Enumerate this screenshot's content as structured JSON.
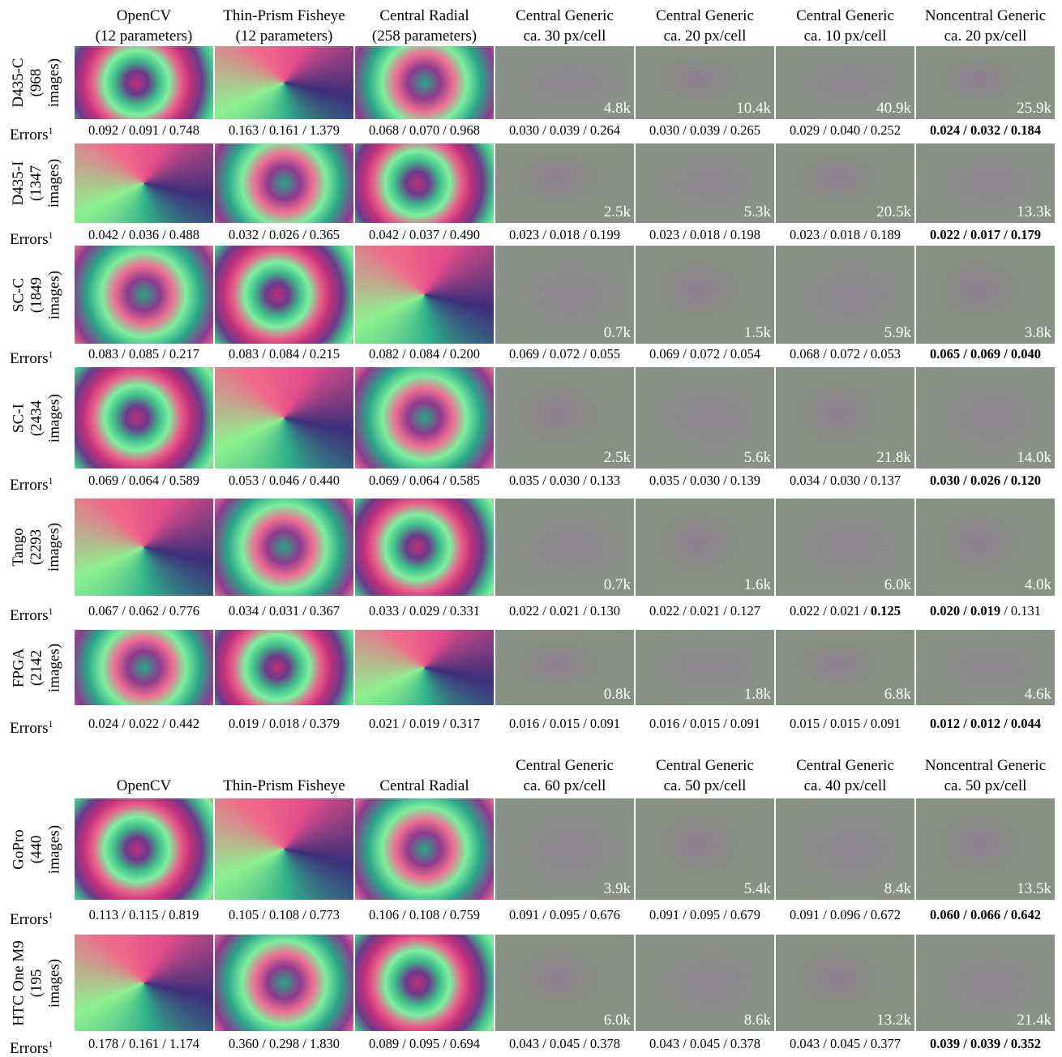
{
  "errors_label": "Errors",
  "errors_footnote": "1",
  "error_separator": " / ",
  "sections": [
    {
      "columns": [
        [
          "OpenCV",
          "(12 parameters)"
        ],
        [
          "Thin-Prism Fisheye",
          "(12 parameters)"
        ],
        [
          "Central Radial",
          "(258 parameters)"
        ],
        [
          "Central Generic",
          "ca. 30 px/cell"
        ],
        [
          "Central Generic",
          "ca. 20 px/cell"
        ],
        [
          "Central Generic",
          "ca. 10 px/cell"
        ],
        [
          "Noncentral Generic",
          "ca. 20 px/cell"
        ]
      ],
      "rows": [
        {
          "label": [
            "D435-C",
            "(968",
            "images)"
          ],
          "counts": [
            "4.8k",
            "10.4k",
            "40.9k",
            "25.9k"
          ],
          "errors": [
            [
              "0.092",
              "0.091",
              "0.748"
            ],
            [
              "0.163",
              "0.161",
              "1.379"
            ],
            [
              "0.068",
              "0.070",
              "0.968"
            ],
            [
              "0.030",
              "0.039",
              "0.264"
            ],
            [
              "0.030",
              "0.039",
              "0.265"
            ],
            [
              "0.029",
              "0.040",
              "0.252"
            ],
            [
              "0.024",
              "0.032",
              "0.184"
            ]
          ],
          "bold": [
            [
              6,
              0
            ],
            [
              6,
              1
            ],
            [
              6,
              2
            ]
          ]
        },
        {
          "label": [
            "D435-I",
            "(1347",
            "images)"
          ],
          "counts": [
            "2.5k",
            "5.3k",
            "20.5k",
            "13.3k"
          ],
          "errors": [
            [
              "0.042",
              "0.036",
              "0.488"
            ],
            [
              "0.032",
              "0.026",
              "0.365"
            ],
            [
              "0.042",
              "0.037",
              "0.490"
            ],
            [
              "0.023",
              "0.018",
              "0.199"
            ],
            [
              "0.023",
              "0.018",
              "0.198"
            ],
            [
              "0.023",
              "0.018",
              "0.189"
            ],
            [
              "0.022",
              "0.017",
              "0.179"
            ]
          ],
          "bold": [
            [
              6,
              0
            ],
            [
              6,
              1
            ],
            [
              6,
              2
            ]
          ]
        },
        {
          "label": [
            "SC-C",
            "(1849",
            "images)"
          ],
          "counts": [
            "0.7k",
            "1.5k",
            "5.9k",
            "3.8k"
          ],
          "errors": [
            [
              "0.083",
              "0.085",
              "0.217"
            ],
            [
              "0.083",
              "0.084",
              "0.215"
            ],
            [
              "0.082",
              "0.084",
              "0.200"
            ],
            [
              "0.069",
              "0.072",
              "0.055"
            ],
            [
              "0.069",
              "0.072",
              "0.054"
            ],
            [
              "0.068",
              "0.072",
              "0.053"
            ],
            [
              "0.065",
              "0.069",
              "0.040"
            ]
          ],
          "bold": [
            [
              6,
              0
            ],
            [
              6,
              1
            ],
            [
              6,
              2
            ]
          ]
        },
        {
          "label": [
            "SC-I",
            "(2434",
            "images)"
          ],
          "counts": [
            "2.5k",
            "5.6k",
            "21.8k",
            "14.0k"
          ],
          "errors": [
            [
              "0.069",
              "0.064",
              "0.589"
            ],
            [
              "0.053",
              "0.046",
              "0.440"
            ],
            [
              "0.069",
              "0.064",
              "0.585"
            ],
            [
              "0.035",
              "0.030",
              "0.133"
            ],
            [
              "0.035",
              "0.030",
              "0.139"
            ],
            [
              "0.034",
              "0.030",
              "0.137"
            ],
            [
              "0.030",
              "0.026",
              "0.120"
            ]
          ],
          "bold": [
            [
              6,
              0
            ],
            [
              6,
              1
            ],
            [
              6,
              2
            ]
          ]
        },
        {
          "label": [
            "Tango",
            "(2293",
            "images)"
          ],
          "counts": [
            "0.7k",
            "1.6k",
            "6.0k",
            "4.0k"
          ],
          "errors": [
            [
              "0.067",
              "0.062",
              "0.776"
            ],
            [
              "0.034",
              "0.031",
              "0.367"
            ],
            [
              "0.033",
              "0.029",
              "0.331"
            ],
            [
              "0.022",
              "0.021",
              "0.130"
            ],
            [
              "0.022",
              "0.021",
              "0.127"
            ],
            [
              "0.022",
              "0.021",
              "0.125"
            ],
            [
              "0.020",
              "0.019",
              "0.131"
            ]
          ],
          "bold": [
            [
              5,
              2
            ],
            [
              6,
              0
            ],
            [
              6,
              1
            ]
          ]
        },
        {
          "label": [
            "FPGA",
            "(2142",
            "images)"
          ],
          "counts": [
            "0.8k",
            "1.8k",
            "6.8k",
            "4.6k"
          ],
          "errors": [
            [
              "0.024",
              "0.022",
              "0.442"
            ],
            [
              "0.019",
              "0.018",
              "0.379"
            ],
            [
              "0.021",
              "0.019",
              "0.317"
            ],
            [
              "0.016",
              "0.015",
              "0.091"
            ],
            [
              "0.016",
              "0.015",
              "0.091"
            ],
            [
              "0.015",
              "0.015",
              "0.091"
            ],
            [
              "0.012",
              "0.012",
              "0.044"
            ]
          ],
          "bold": [
            [
              6,
              0
            ],
            [
              6,
              1
            ],
            [
              6,
              2
            ]
          ]
        }
      ]
    },
    {
      "columns": [
        [
          "OpenCV"
        ],
        [
          "Thin-Prism Fisheye"
        ],
        [
          "Central Radial"
        ],
        [
          "Central Generic",
          "ca. 60 px/cell"
        ],
        [
          "Central Generic",
          "ca. 50 px/cell"
        ],
        [
          "Central Generic",
          "ca. 40 px/cell"
        ],
        [
          "Noncentral Generic",
          "ca. 50 px/cell"
        ]
      ],
      "rows": [
        {
          "label": [
            "GoPro",
            "(440",
            "images)"
          ],
          "counts": [
            "3.9k",
            "5.4k",
            "8.4k",
            "13.5k"
          ],
          "errors": [
            [
              "0.113",
              "0.115",
              "0.819"
            ],
            [
              "0.105",
              "0.108",
              "0.773"
            ],
            [
              "0.106",
              "0.108",
              "0.759"
            ],
            [
              "0.091",
              "0.095",
              "0.676"
            ],
            [
              "0.091",
              "0.095",
              "0.679"
            ],
            [
              "0.091",
              "0.096",
              "0.672"
            ],
            [
              "0.060",
              "0.066",
              "0.642"
            ]
          ],
          "bold": [
            [
              6,
              0
            ],
            [
              6,
              1
            ],
            [
              6,
              2
            ]
          ]
        },
        {
          "label": [
            "HTC One M9",
            "(195",
            "images)"
          ],
          "counts": [
            "6.0k",
            "8.6k",
            "13.2k",
            "21.4k"
          ],
          "errors": [
            [
              "0.178",
              "0.161",
              "1.174"
            ],
            [
              "0.360",
              "0.298",
              "1.830"
            ],
            [
              "0.089",
              "0.095",
              "0.694"
            ],
            [
              "0.043",
              "0.045",
              "0.378"
            ],
            [
              "0.043",
              "0.045",
              "0.378"
            ],
            [
              "0.043",
              "0.045",
              "0.377"
            ],
            [
              "0.039",
              "0.039",
              "0.352"
            ]
          ],
          "bold": [
            [
              6,
              0
            ],
            [
              6,
              1
            ],
            [
              6,
              2
            ]
          ]
        }
      ]
    }
  ]
}
